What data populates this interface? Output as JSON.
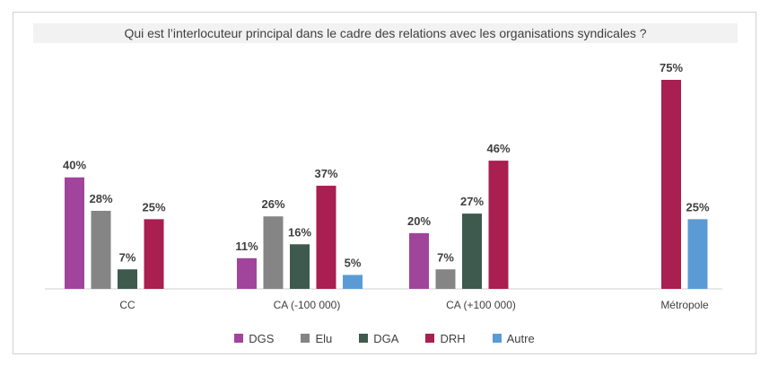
{
  "chart_data": {
    "type": "bar",
    "title": "Qui est l’interlocuteur principal dans le cadre des relations avec les organisations syndicales ?",
    "categories": [
      "CC",
      "CA (-100 000)",
      "CA (+100 000)",
      "Métropole"
    ],
    "series": [
      {
        "name": "DGS",
        "color": "#a0459b",
        "values": [
          40,
          11,
          20,
          null
        ],
        "labels": [
          "40%",
          "11%",
          "20%",
          ""
        ]
      },
      {
        "name": "Elu",
        "color": "#858585",
        "values": [
          28,
          26,
          7,
          null
        ],
        "labels": [
          "28%",
          "26%",
          "7%",
          ""
        ]
      },
      {
        "name": "DGA",
        "color": "#3e5a4e",
        "values": [
          7,
          16,
          27,
          null
        ],
        "labels": [
          "7%",
          "16%",
          "27%",
          ""
        ]
      },
      {
        "name": "DRH",
        "color": "#a81f50",
        "values": [
          25,
          37,
          46,
          75
        ],
        "labels": [
          "25%",
          "37%",
          "46%",
          "75%"
        ]
      },
      {
        "name": "Autre",
        "color": "#5b9bd5",
        "values": [
          null,
          5,
          null,
          25
        ],
        "labels": [
          "",
          "5%",
          "",
          "25%"
        ]
      }
    ],
    "ylim": [
      0,
      75
    ],
    "grid": false,
    "legend": "bottom"
  }
}
